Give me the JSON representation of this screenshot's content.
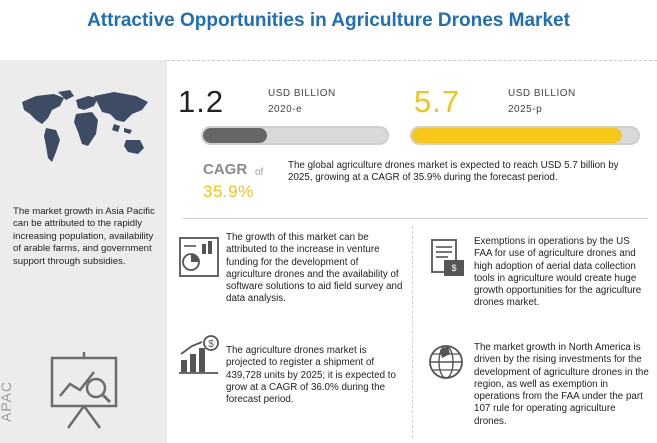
{
  "title": "Attractive Opportunities in Agriculture Drones Market",
  "market_2020": {
    "value": "1.2",
    "unit": "USD BILLION",
    "year": "2020-e",
    "bar_fill": 0.35,
    "bar_color": "#666666"
  },
  "market_2025": {
    "value": "5.7",
    "unit": "USD BILLION",
    "year": "2025-p",
    "bar_fill": 0.93,
    "bar_color": "#f7c718"
  },
  "cagr": {
    "label": "CAGR",
    "of": "of",
    "value": "35.9%"
  },
  "summary": "The global agriculture drones market is expected to reach USD 5.7 billion by 2025, growing at a CAGR of 35.9% during the forecast period.",
  "left": {
    "region_text": "The market growth in Asia Pacific can be attributed to the rapidly increasing population, availability of arable farms, and government support through subsidies.",
    "region_label": "APAC"
  },
  "cards": [
    {
      "icon": "funding-chart-icon",
      "text": "The growth of this market can be attributed to the increase in venture funding for the development of agriculture drones and the availability of software solutions to aid field survey and data analysis."
    },
    {
      "icon": "faa-document-icon",
      "text": "Exemptions in operations by the US FAA for use of agriculture drones and high adoption of aerial data collection tools in agriculture would create huge growth opportunities for the agriculture drones market."
    },
    {
      "icon": "growth-bars-icon",
      "text": "The agriculture drones market is projected to register a shipment of 439,728 units by 2025; it is expected to grow at a CAGR of  36.0% during the forecast period."
    },
    {
      "icon": "globe-pin-icon",
      "text": "The market growth in North America is driven by the rising investments for the development of agriculture drones in the region, as well as exemption in operations from the FAA under the part 107 rule for operating agriculture drones."
    }
  ],
  "colors": {
    "title": "#1d6fb8",
    "accent": "#f2c318",
    "panel": "#ececec"
  }
}
